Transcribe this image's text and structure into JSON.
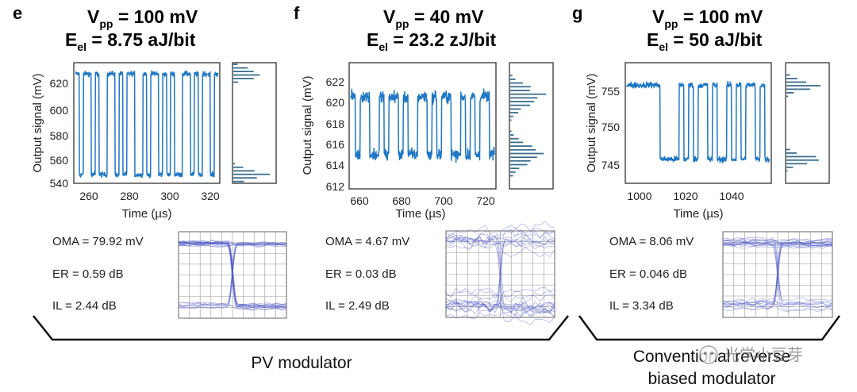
{
  "panels": [
    {
      "id": "e",
      "label": "e",
      "vpp_prefix": "V",
      "vpp_sub": "pp",
      "vpp_value": " = 100 mV",
      "eel_prefix": "E",
      "eel_sub": "el",
      "eel_value": " = 8.75 aJ/bit",
      "ylabel": "Output signal (mV)",
      "xlabel": "Time (µs)",
      "yticks": [
        "620",
        "600",
        "580",
        "560",
        "540"
      ],
      "xticks": [
        "260",
        "280",
        "300",
        "320"
      ],
      "oma": "OMA = 79.92 mV",
      "er": "ER = 0.59 dB",
      "il": "IL = 2.44 dB"
    },
    {
      "id": "f",
      "label": "f",
      "vpp_prefix": "V",
      "vpp_sub": "pp",
      "vpp_value": " = 40 mV",
      "eel_prefix": "E",
      "eel_sub": "el",
      "eel_value": " = 23.2 zJ/bit",
      "ylabel": "Output signal (mV)",
      "xlabel": "Time (µs)",
      "yticks": [
        "622",
        "620",
        "618",
        "616",
        "614",
        "612"
      ],
      "xticks": [
        "660",
        "680",
        "700",
        "720"
      ],
      "oma": "OMA = 4.67 mV",
      "er": "ER = 0.03 dB",
      "il": "IL = 2.49 dB"
    },
    {
      "id": "g",
      "label": "g",
      "vpp_prefix": "V",
      "vpp_sub": "pp",
      "vpp_value": " = 100 mV",
      "eel_prefix": "E",
      "eel_sub": "el",
      "eel_value": " = 50 aJ/bit",
      "ylabel": "Output signal (mV)",
      "xlabel": "Time (µs)",
      "yticks": [
        "755",
        "750",
        "745"
      ],
      "xticks": [
        "1000",
        "1020",
        "1040"
      ],
      "oma": "OMA = 8.06 mV",
      "er": "ER = 0.046 dB",
      "il": "IL = 3.34 dB"
    }
  ],
  "groups": {
    "pv": "PV modulator",
    "conv_line1": "Conventional reverse",
    "conv_line2": "biased modulator"
  },
  "watermark": "光学小豆芽",
  "colors": {
    "trace": "#1f77c4",
    "hist": "#3c6e8c",
    "eye": "#4a55c8"
  },
  "chart_data": [
    {
      "type": "line",
      "panel": "e",
      "xlabel": "Time (µs)",
      "ylabel": "Output signal (mV)",
      "xlim": [
        252,
        324
      ],
      "ylim": [
        538,
        636
      ],
      "levels": [
        545,
        627
      ],
      "bits": [
        1,
        0,
        1,
        1,
        0,
        1,
        0,
        0,
        1,
        1,
        0,
        1,
        0,
        1,
        1,
        0,
        0,
        1,
        0,
        1,
        1,
        0,
        1,
        0,
        1,
        0,
        0,
        1,
        1,
        0,
        1,
        0,
        1,
        1,
        0,
        1
      ]
    },
    {
      "type": "line",
      "panel": "f",
      "xlabel": "Time (µs)",
      "ylabel": "Output signal (mV)",
      "xlim": [
        655,
        724
      ],
      "ylim": [
        611.5,
        623
      ],
      "levels": [
        614.6,
        619.9
      ],
      "bits": [
        1,
        0,
        1,
        1,
        0,
        0,
        1,
        0,
        1,
        1,
        0,
        1,
        0,
        0,
        1,
        1,
        0,
        1,
        0,
        1,
        1,
        0,
        0,
        1,
        0,
        1,
        0,
        1,
        1,
        0
      ]
    },
    {
      "type": "line",
      "panel": "g",
      "xlabel": "Time (µs)",
      "ylabel": "Output signal (mV)",
      "xlim": [
        993,
        1056
      ],
      "ylim": [
        743,
        757
      ],
      "levels": [
        745.8,
        754.4
      ],
      "bits": [
        1,
        1,
        1,
        1,
        1,
        1,
        1,
        0,
        0,
        0,
        0,
        1,
        0,
        1,
        0,
        1,
        1,
        0,
        1,
        0,
        0,
        1,
        0,
        1,
        0,
        1,
        1,
        0,
        1,
        0
      ]
    }
  ]
}
